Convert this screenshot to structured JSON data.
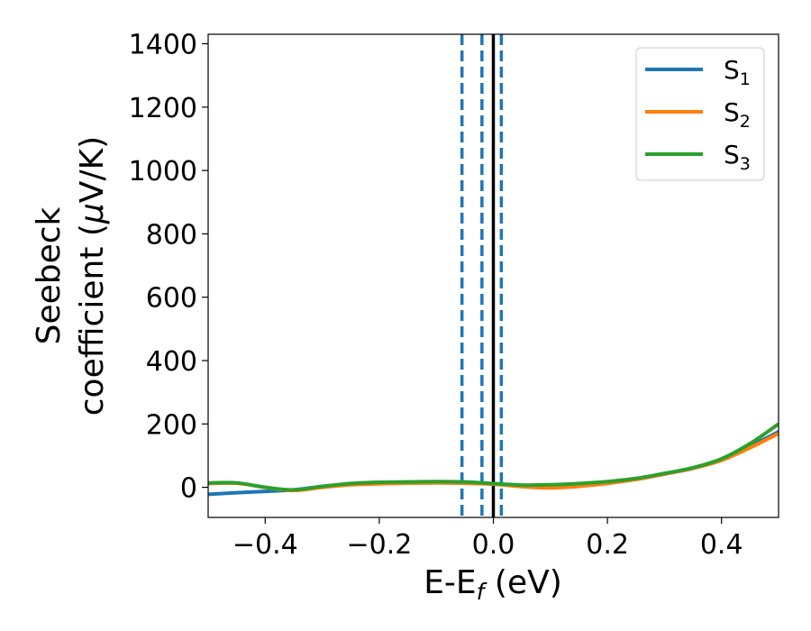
{
  "chart_data": {
    "type": "line",
    "xlabel": {
      "main": "E-E",
      "sub": "f",
      "unit": " (eV)"
    },
    "ylabel": {
      "line1": "Seebeck",
      "line2_prefix": "coefficient  (",
      "mu": "μ",
      "line2_suffix": "V/K)"
    },
    "xlim": [
      -0.5,
      0.5
    ],
    "ylim": [
      -95,
      1430
    ],
    "xticks": [
      -0.4,
      -0.2,
      0.0,
      0.2,
      0.4
    ],
    "xtick_labels": [
      "−0.4",
      "−0.2",
      "0.0",
      "0.2",
      "0.4"
    ],
    "yticks": [
      0,
      200,
      400,
      600,
      800,
      1000,
      1200,
      1400
    ],
    "ytick_labels": [
      "0",
      "200",
      "400",
      "600",
      "800",
      "1000",
      "1200",
      "1400"
    ],
    "grid": false,
    "legend_position": "top-right",
    "vlines": [
      {
        "x": -0.055,
        "style": "dashed",
        "color": "#1f77b4"
      },
      {
        "x": -0.02,
        "style": "dashed",
        "color": "#1f77b4"
      },
      {
        "x": 0.014,
        "style": "dashed",
        "color": "#1f77b4"
      },
      {
        "x": 0.0,
        "style": "solid",
        "color": "#000000"
      }
    ],
    "series": [
      {
        "name": "S",
        "sub": "1",
        "color": "#1f77b4",
        "x": [
          -0.5,
          -0.45,
          -0.4,
          -0.35,
          -0.3,
          -0.25,
          -0.2,
          -0.15,
          -0.1,
          -0.05,
          0.0,
          0.05,
          0.1,
          0.15,
          0.2,
          0.25,
          0.3,
          0.35,
          0.4,
          0.45,
          0.5
        ],
        "y": [
          -22,
          -17,
          -13,
          -8,
          3,
          10,
          14,
          16,
          15,
          13,
          11,
          6,
          3,
          7,
          14,
          25,
          42,
          60,
          88,
          130,
          175
        ]
      },
      {
        "name": "S",
        "sub": "2",
        "color": "#ff7f0e",
        "x": [
          -0.5,
          -0.45,
          -0.4,
          -0.35,
          -0.3,
          -0.25,
          -0.2,
          -0.15,
          -0.1,
          -0.05,
          0.0,
          0.05,
          0.1,
          0.15,
          0.2,
          0.25,
          0.3,
          0.35,
          0.4,
          0.45,
          0.5
        ],
        "y": [
          12,
          13,
          0,
          -10,
          0,
          8,
          11,
          13,
          14,
          13,
          10,
          2,
          -2,
          3,
          12,
          25,
          42,
          60,
          85,
          125,
          170
        ]
      },
      {
        "name": "S",
        "sub": "3",
        "color": "#2ca02c",
        "x": [
          -0.5,
          -0.45,
          -0.4,
          -0.35,
          -0.3,
          -0.25,
          -0.2,
          -0.15,
          -0.1,
          -0.05,
          0.0,
          0.05,
          0.1,
          0.15,
          0.2,
          0.25,
          0.3,
          0.35,
          0.4,
          0.45,
          0.5
        ],
        "y": [
          14,
          14,
          0,
          -8,
          3,
          12,
          16,
          17,
          18,
          17,
          12,
          7,
          8,
          12,
          18,
          28,
          44,
          62,
          90,
          138,
          200
        ]
      }
    ]
  }
}
